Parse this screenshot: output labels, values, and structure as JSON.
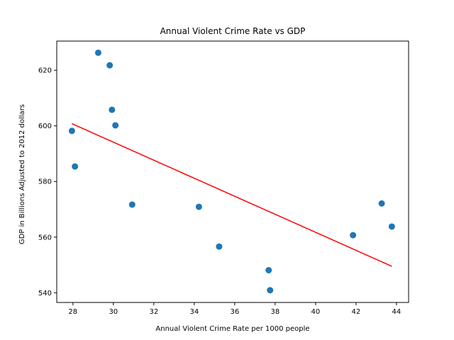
{
  "chart_data": {
    "type": "scatter",
    "title": "Annual Violent Crime Rate vs GDP",
    "xlabel": "Annual Violent Crime Rate per 1000 people",
    "ylabel": "GDP in Billions Adjusted to 2012 dollars",
    "xlim": [
      27.2,
      44.6
    ],
    "ylim": [
      536.5,
      630.5
    ],
    "xticks": [
      28,
      30,
      32,
      34,
      36,
      38,
      40,
      42,
      44
    ],
    "yticks": [
      540,
      560,
      580,
      600,
      620
    ],
    "grid": false,
    "legend": "none",
    "colors": {
      "points": "#1f77b4",
      "trendline": "#ff0000"
    },
    "points": [
      {
        "x": 27.95,
        "y": 598.2
      },
      {
        "x": 28.1,
        "y": 585.4
      },
      {
        "x": 29.25,
        "y": 626.3
      },
      {
        "x": 29.82,
        "y": 621.8
      },
      {
        "x": 29.93,
        "y": 605.8
      },
      {
        "x": 30.1,
        "y": 600.2
      },
      {
        "x": 30.93,
        "y": 571.7
      },
      {
        "x": 34.23,
        "y": 570.9
      },
      {
        "x": 35.23,
        "y": 556.6
      },
      {
        "x": 37.68,
        "y": 548.1
      },
      {
        "x": 37.75,
        "y": 540.9
      },
      {
        "x": 41.85,
        "y": 560.7
      },
      {
        "x": 43.27,
        "y": 572.1
      },
      {
        "x": 43.77,
        "y": 563.8
      }
    ],
    "trendline": {
      "x": [
        27.95,
        43.77
      ],
      "y": [
        600.8,
        549.5
      ]
    }
  }
}
